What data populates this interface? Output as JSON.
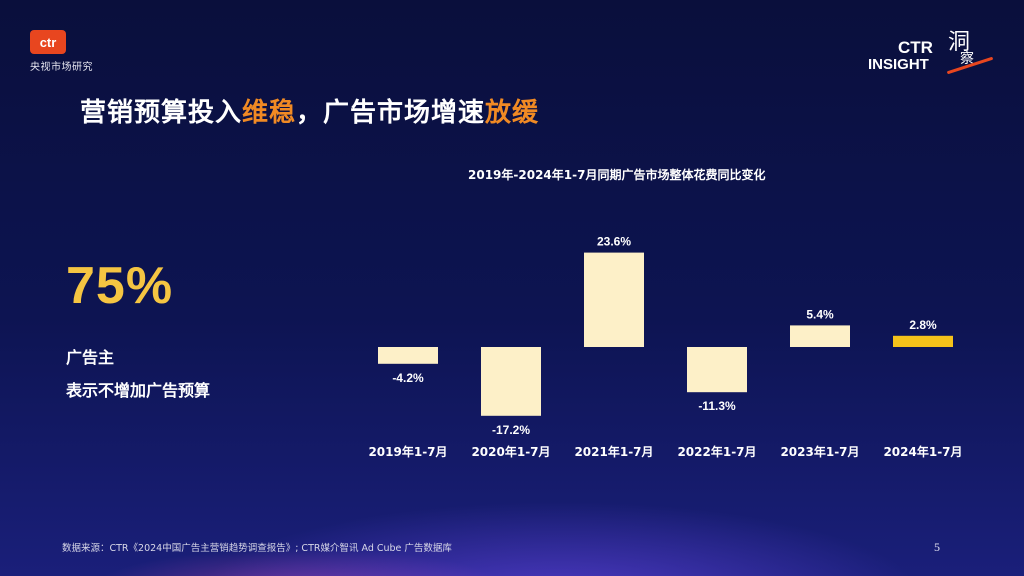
{
  "logo": {
    "mark": "ctr",
    "subtitle": "央视市场研究"
  },
  "insight_logo": {
    "ctr": "CTR",
    "insight": "INSIGHT",
    "cn_char1": "洞",
    "cn_char2": "察"
  },
  "headline": {
    "part1": "营销预算投入",
    "highlight1": "维稳",
    "part2": "，广告市场增速",
    "highlight2": "放缓"
  },
  "stat": {
    "value": "75%",
    "label_line1": "广告主",
    "label_line2": "表示不增加广告预算"
  },
  "chart_data": {
    "type": "bar",
    "title": "2019年-2024年1-7月同期广告市场整体花费同比变化",
    "categories": [
      "2019年1-7月",
      "2020年1-7月",
      "2021年1-7月",
      "2022年1-7月",
      "2023年1-7月",
      "2024年1-7月"
    ],
    "values": [
      -4.2,
      -17.2,
      23.6,
      -11.3,
      5.4,
      2.8
    ],
    "value_labels": [
      "-4.2%",
      "-17.2%",
      "23.6%",
      "-11.3%",
      "5.4%",
      "2.8%"
    ],
    "bar_colors": [
      "#fdf0c8",
      "#fdf0c8",
      "#fdf0c8",
      "#fdf0c8",
      "#fdf0c8",
      "#f5c21a"
    ],
    "ylim": [
      -17.2,
      23.6
    ],
    "xlabel": "",
    "ylabel": "",
    "grid": false
  },
  "source": "数据来源：CTR《2024中国广告主营销趋势调查报告》; CTR媒介智讯 Ad Cube 广告数据库",
  "page_number": "5"
}
